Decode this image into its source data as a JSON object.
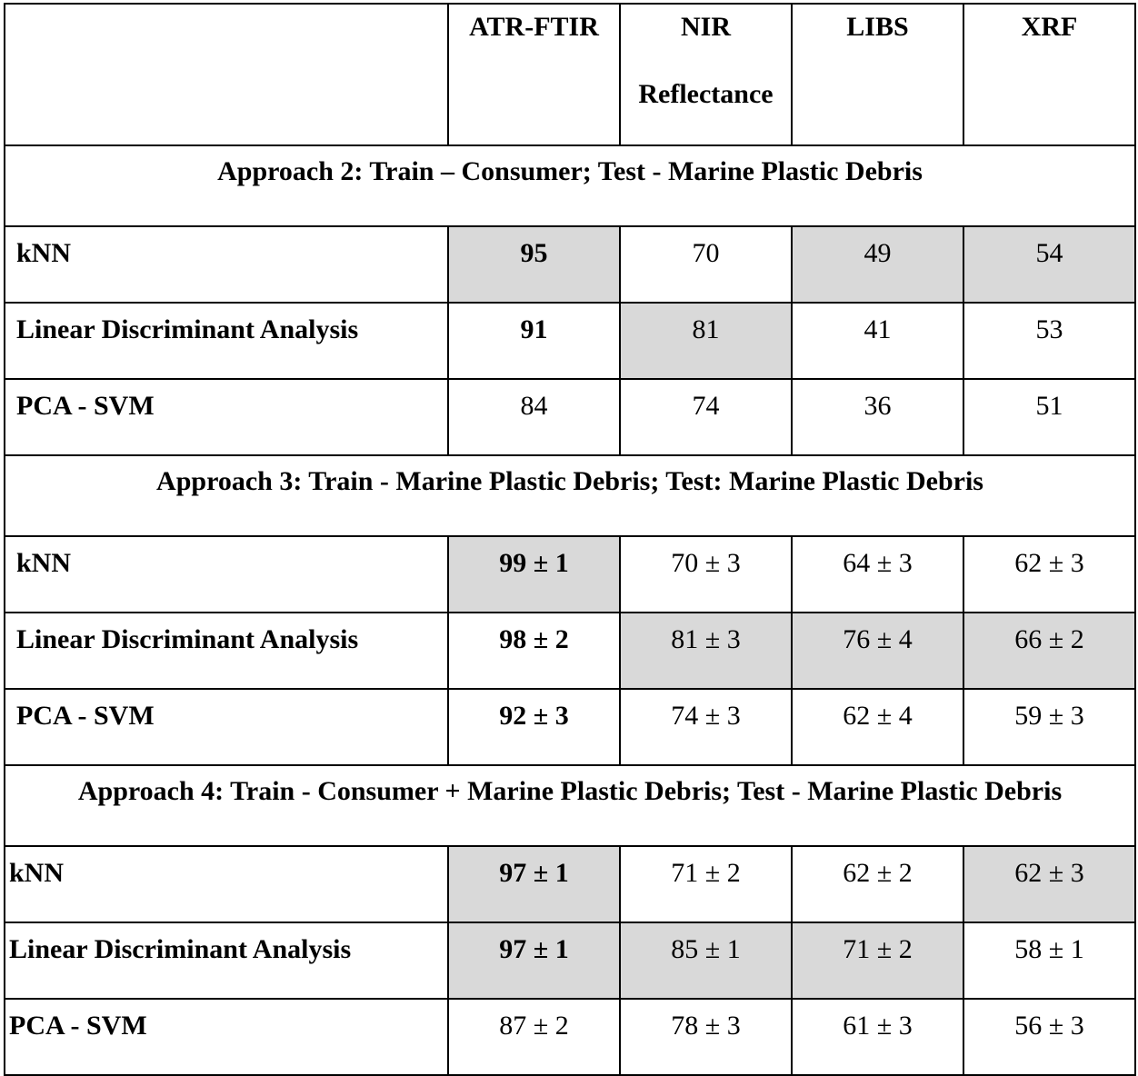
{
  "columns": [
    "ATR-FTIR",
    "NIR Reflectance",
    "LIBS",
    "XRF"
  ],
  "sections": [
    {
      "title": "Approach 2: Train – Consumer; Test - Marine Plastic Debris",
      "rows": [
        {
          "method": "kNN",
          "values": [
            "95",
            "70",
            "49",
            "54"
          ]
        },
        {
          "method": "Linear Discriminant Analysis",
          "values": [
            "91",
            "81",
            "41",
            "53"
          ]
        },
        {
          "method": "PCA - SVM",
          "values": [
            "84",
            "74",
            "36",
            "51"
          ]
        }
      ]
    },
    {
      "title": "Approach 3: Train - Marine Plastic Debris;  Test: Marine Plastic Debris",
      "rows": [
        {
          "method": "kNN",
          "values": [
            "99 ± 1",
            "70 ± 3",
            "64 ± 3",
            "62 ± 3"
          ]
        },
        {
          "method": "Linear Discriminant Analysis",
          "values": [
            "98 ± 2",
            "81 ± 3",
            "76 ± 4",
            "66 ± 2"
          ]
        },
        {
          "method": "PCA - SVM",
          "values": [
            "92 ± 3",
            "74 ± 3",
            "62 ± 4",
            "59 ± 3"
          ]
        }
      ]
    },
    {
      "title": "Approach 4: Train - Consumer + Marine Plastic Debris; Test - Marine Plastic Debris",
      "rows": [
        {
          "method": "kNN",
          "values": [
            "97 ± 1",
            "71 ± 2",
            "62 ± 2",
            "62 ± 3"
          ]
        },
        {
          "method": "Linear Discriminant Analysis",
          "values": [
            "97 ± 1",
            "85 ± 1",
            "71 ± 2",
            "58 ± 1"
          ]
        },
        {
          "method": "PCA - SVM",
          "values": [
            "87 ± 2",
            "78 ± 3",
            "61 ± 3",
            "56 ± 3"
          ]
        }
      ]
    }
  ],
  "shade_color": "#d9d9d9"
}
